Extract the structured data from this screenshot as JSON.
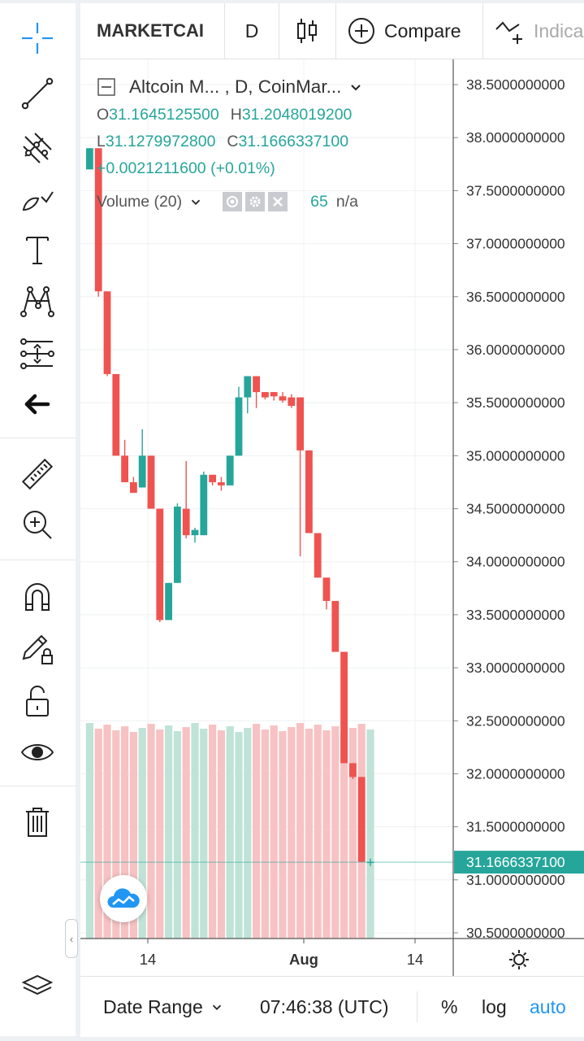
{
  "header": {
    "symbol": "MARKETCAI",
    "interval": "D",
    "compare_label": "Compare",
    "indicators_label": "Indica"
  },
  "legend": {
    "title": "Altcoin M... , D, CoinMar...",
    "open_label": "O",
    "open": "31.1645125500",
    "high_label": "H",
    "high": "31.2048019200",
    "low_label": "L",
    "low": "31.1279972800",
    "close_label": "C",
    "close": "31.1666337100",
    "change": "+0.0021211600 (+0.01%)",
    "volume_label": "Volume (20)",
    "volume_value": "65",
    "volume_na": "n/a"
  },
  "chart_data": {
    "type": "candlestick",
    "price_axis_ticks": [
      "38.5000000000",
      "38.0000000000",
      "37.5000000000",
      "37.0000000000",
      "36.5000000000",
      "36.0000000000",
      "35.5000000000",
      "35.0000000000",
      "34.5000000000",
      "34.0000000000",
      "33.5000000000",
      "33.0000000000",
      "32.5000000000",
      "32.0000000000",
      "31.5000000000",
      "31.0000000000",
      "30.5000000000"
    ],
    "last_price": "31.1666337100",
    "time_axis_ticks": [
      "14",
      "Aug",
      "14"
    ],
    "ylim": [
      30.5,
      38.5
    ],
    "candles": [
      {
        "o": 37.7,
        "h": 37.9,
        "l": 37.7,
        "c": 37.9
      },
      {
        "o": 37.9,
        "h": 37.9,
        "l": 36.5,
        "c": 36.55
      },
      {
        "o": 36.55,
        "h": 36.55,
        "l": 35.75,
        "c": 35.77
      },
      {
        "o": 35.77,
        "h": 35.77,
        "l": 35.0,
        "c": 35.0
      },
      {
        "o": 35.0,
        "h": 35.15,
        "l": 34.75,
        "c": 34.75
      },
      {
        "o": 34.75,
        "h": 34.8,
        "l": 34.65,
        "c": 34.65
      },
      {
        "o": 34.7,
        "h": 35.25,
        "l": 34.7,
        "c": 35.0
      },
      {
        "o": 35.0,
        "h": 35.0,
        "l": 34.5,
        "c": 34.5
      },
      {
        "o": 34.5,
        "h": 34.5,
        "l": 33.43,
        "c": 33.45
      },
      {
        "o": 33.45,
        "h": 33.8,
        "l": 33.45,
        "c": 33.8
      },
      {
        "o": 33.8,
        "h": 34.55,
        "l": 33.8,
        "c": 34.52
      },
      {
        "o": 34.5,
        "h": 34.95,
        "l": 34.22,
        "c": 34.25
      },
      {
        "o": 34.25,
        "h": 34.32,
        "l": 34.18,
        "c": 34.3
      },
      {
        "o": 34.25,
        "h": 34.85,
        "l": 34.25,
        "c": 34.82
      },
      {
        "o": 34.82,
        "h": 34.82,
        "l": 34.72,
        "c": 34.75
      },
      {
        "o": 34.75,
        "h": 34.8,
        "l": 34.67,
        "c": 34.72
      },
      {
        "o": 34.72,
        "h": 35.0,
        "l": 34.72,
        "c": 35.0
      },
      {
        "o": 35.0,
        "h": 35.65,
        "l": 35.0,
        "c": 35.55
      },
      {
        "o": 35.55,
        "h": 35.75,
        "l": 35.4,
        "c": 35.75
      },
      {
        "o": 35.75,
        "h": 35.75,
        "l": 35.45,
        "c": 35.6
      },
      {
        "o": 35.6,
        "h": 35.6,
        "l": 35.53,
        "c": 35.55
      },
      {
        "o": 35.6,
        "h": 35.6,
        "l": 35.52,
        "c": 35.56
      },
      {
        "o": 35.56,
        "h": 35.6,
        "l": 35.5,
        "c": 35.52
      },
      {
        "o": 35.55,
        "h": 35.58,
        "l": 35.45,
        "c": 35.47
      },
      {
        "o": 35.55,
        "h": 35.55,
        "l": 34.05,
        "c": 35.05
      },
      {
        "o": 35.05,
        "h": 35.05,
        "l": 34.27,
        "c": 34.27
      },
      {
        "o": 34.27,
        "h": 34.27,
        "l": 33.85,
        "c": 33.85
      },
      {
        "o": 33.85,
        "h": 33.85,
        "l": 33.55,
        "c": 33.63
      },
      {
        "o": 33.63,
        "h": 33.63,
        "l": 33.15,
        "c": 33.15
      },
      {
        "o": 33.15,
        "h": 33.15,
        "l": 32.1,
        "c": 32.1
      },
      {
        "o": 32.1,
        "h": 32.1,
        "l": 31.95,
        "c": 31.97
      },
      {
        "o": 31.97,
        "h": 31.97,
        "l": 31.17,
        "c": 31.17
      },
      {
        "o": 31.16,
        "h": 31.2,
        "l": 31.13,
        "c": 31.17
      }
    ],
    "volume_up_color": "#26a69a",
    "volume_down_color": "#ef5350"
  },
  "bottombar": {
    "date_range_label": "Date Range",
    "time": "07:46:38 (UTC)",
    "percent": "%",
    "log": "log",
    "auto": "auto"
  },
  "colors": {
    "up": "#26a69a",
    "down": "#ef5350",
    "accent": "#2196f3"
  }
}
